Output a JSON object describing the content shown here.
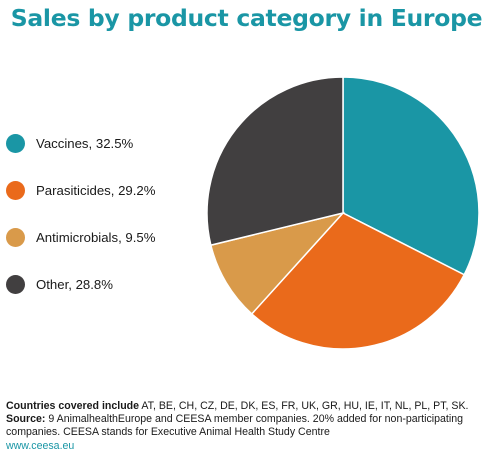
{
  "title": "Sales by product category in Europe",
  "chart_data": {
    "type": "pie",
    "title": "Sales by product category in Europe",
    "slices": [
      {
        "label": "Vaccines, 32.5%",
        "name": "Vaccines",
        "value": 32.5,
        "color": "#1a96a5"
      },
      {
        "label": "Parasiticides, 29.2%",
        "name": "Parasiticides",
        "value": 29.2,
        "color": "#ea6a1b"
      },
      {
        "label": "Antimicrobials, 9.5%",
        "name": "Antimicrobials",
        "value": 9.5,
        "color": "#d99a4a"
      },
      {
        "label": "Other, 28.8%",
        "name": "Other",
        "value": 28.8,
        "color": "#413f40"
      }
    ],
    "legend_position": "left"
  },
  "footer": {
    "countries_label": "Countries covered include",
    "countries": "AT, BE, CH, CZ, DE, DK, ES, FR, UK, GR, HU, IE, IT, NL, PL, PT, SK.",
    "source_label": "Source:",
    "source_text": "9 AnimalhealthEurope and CEESA member companies. 20% added for non-participating companies. CEESA stands for Executive Animal Health Study Centre",
    "url": "www.ceesa.eu"
  }
}
